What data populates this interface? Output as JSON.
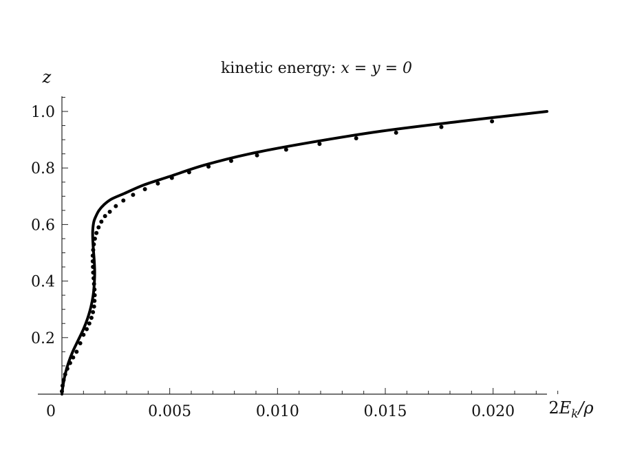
{
  "chart_data": {
    "type": "line",
    "title_plain": "kinetic energy: ",
    "title_math": "x = y = 0",
    "xlabel": "2E_k/ρ",
    "ylabel": "z",
    "xlim": [
      0,
      0.0235
    ],
    "ylim": [
      0,
      1.05
    ],
    "x_ticks": [
      0,
      0.005,
      0.01,
      0.015,
      0.02
    ],
    "x_tick_labels": [
      "0",
      "0.005",
      "0.010",
      "0.015",
      "0.020"
    ],
    "y_ticks": [
      0.2,
      0.4,
      0.6,
      0.8,
      1.0
    ],
    "y_tick_labels": [
      "0.2",
      "0.4",
      "0.6",
      "0.8",
      "1.0"
    ],
    "grid": false,
    "line_color": "#000000",
    "series": [
      {
        "x": [
          0.0,
          5e-05,
          0.00015,
          0.0003,
          0.0005,
          0.00075,
          0.001,
          0.0012,
          0.00135,
          0.00145,
          0.0015,
          0.00152,
          0.0015,
          0.00146,
          0.00143,
          0.00143,
          0.00148,
          0.00158,
          0.00172,
          0.00195,
          0.0023,
          0.0029,
          0.0038,
          0.005,
          0.0066,
          0.0087,
          0.0115,
          0.0148,
          0.0185,
          0.0225
        ],
        "y": [
          0.0,
          0.03,
          0.07,
          0.11,
          0.15,
          0.19,
          0.23,
          0.27,
          0.31,
          0.35,
          0.39,
          0.43,
          0.47,
          0.51,
          0.55,
          0.58,
          0.61,
          0.63,
          0.65,
          0.67,
          0.69,
          0.71,
          0.74,
          0.77,
          0.81,
          0.85,
          0.89,
          0.93,
          0.965,
          1.0
        ]
      }
    ],
    "marker_points": {
      "x": [
        0.0,
        3e-05,
        8e-05,
        0.00015,
        0.00025,
        0.00038,
        0.00052,
        0.00068,
        0.00085,
        0.001,
        0.00115,
        0.00127,
        0.00137,
        0.00144,
        0.00149,
        0.00151,
        0.00152,
        0.00151,
        0.00149,
        0.00147,
        0.00145,
        0.00144,
        0.00143,
        0.00143,
        0.00145,
        0.00148,
        0.00153,
        0.0016,
        0.0017,
        0.00183,
        0.002,
        0.00222,
        0.0025,
        0.00285,
        0.0033,
        0.00385,
        0.00445,
        0.0051,
        0.0059,
        0.0068,
        0.00785,
        0.00905,
        0.0104,
        0.01195,
        0.01365,
        0.0155,
        0.0176,
        0.01995
      ],
      "y": [
        0.01,
        0.03,
        0.05,
        0.07,
        0.09,
        0.11,
        0.13,
        0.15,
        0.18,
        0.21,
        0.23,
        0.25,
        0.27,
        0.29,
        0.31,
        0.33,
        0.35,
        0.37,
        0.39,
        0.41,
        0.43,
        0.45,
        0.47,
        0.49,
        0.51,
        0.53,
        0.55,
        0.57,
        0.59,
        0.61,
        0.63,
        0.645,
        0.665,
        0.685,
        0.705,
        0.725,
        0.745,
        0.765,
        0.785,
        0.805,
        0.825,
        0.845,
        0.865,
        0.885,
        0.905,
        0.925,
        0.945,
        0.965
      ]
    }
  }
}
